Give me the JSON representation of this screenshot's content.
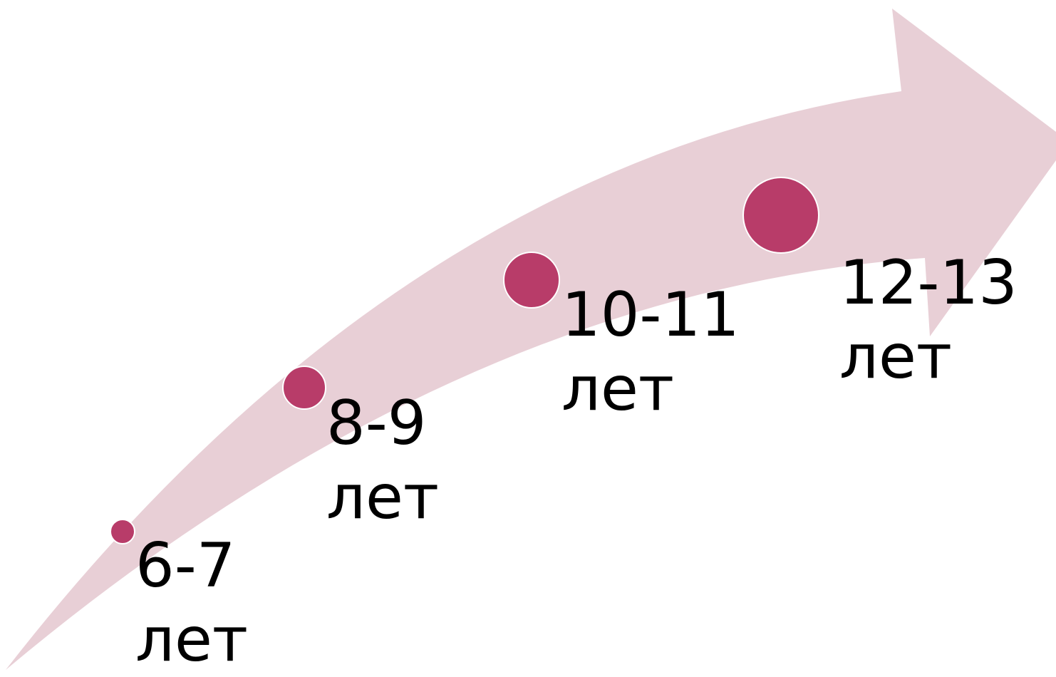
{
  "colors": {
    "arrow": "#e8cfd6",
    "dot": "#b83c69",
    "dot_outline": "#ffffff",
    "text": "#000000",
    "background": "#ffffff"
  },
  "stages": [
    {
      "range": "6-7",
      "unit": "лет"
    },
    {
      "range": "8-9",
      "unit": "лет"
    },
    {
      "range": "10-11",
      "unit": "лет"
    },
    {
      "range": "12-13",
      "unit": "лет"
    }
  ]
}
